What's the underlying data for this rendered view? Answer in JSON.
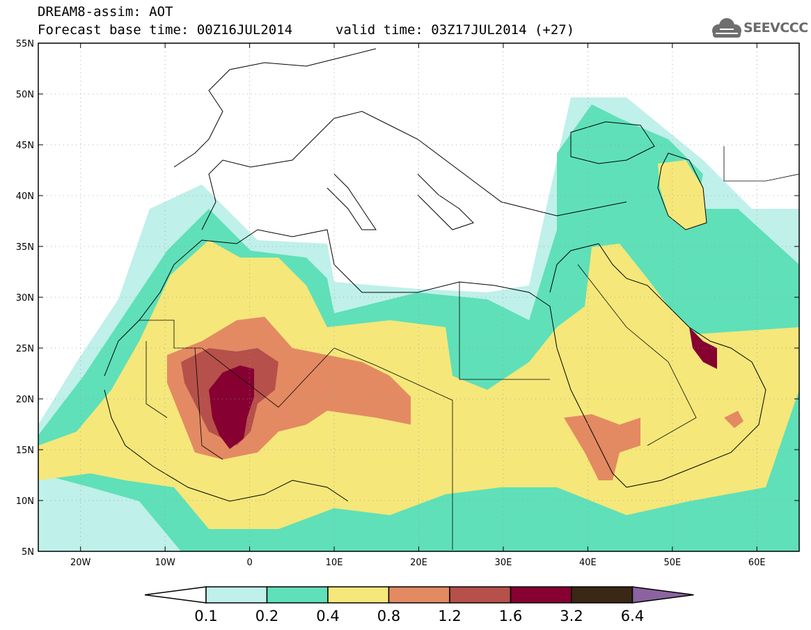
{
  "header": {
    "line1": "DREAM8-assim: AOT",
    "line2": "Forecast base time: 00Z16JUL2014",
    "valid": "valid time: 03Z17JUL2014 (+27)",
    "logo_text": "SEEVCCC"
  },
  "map": {
    "lon_range": [
      -25,
      65
    ],
    "lat_range": [
      5,
      55
    ],
    "lat_labels": [
      "55N",
      "50N",
      "45N",
      "40N",
      "35N",
      "30N",
      "25N",
      "20N",
      "15N",
      "10N",
      "5N"
    ],
    "lon_labels": [
      "20W",
      "10W",
      "0",
      "10E",
      "20E",
      "30E",
      "40E",
      "50E",
      "60E"
    ],
    "lon_ticks": [
      -20,
      -10,
      0,
      10,
      20,
      30,
      40,
      50,
      60
    ],
    "lat_ticks": [
      55,
      50,
      45,
      40,
      35,
      30,
      25,
      20,
      15,
      10,
      5
    ]
  },
  "legend": {
    "levels": [
      "0.1",
      "0.2",
      "0.4",
      "0.8",
      "1.2",
      "1.6",
      "3.2",
      "6.4"
    ],
    "colors": [
      "#ffffff",
      "#bff0ea",
      "#5fe0b8",
      "#f5e77a",
      "#e38a63",
      "#b6504a",
      "#860031",
      "#3a2715",
      "#8a63a0"
    ]
  }
}
